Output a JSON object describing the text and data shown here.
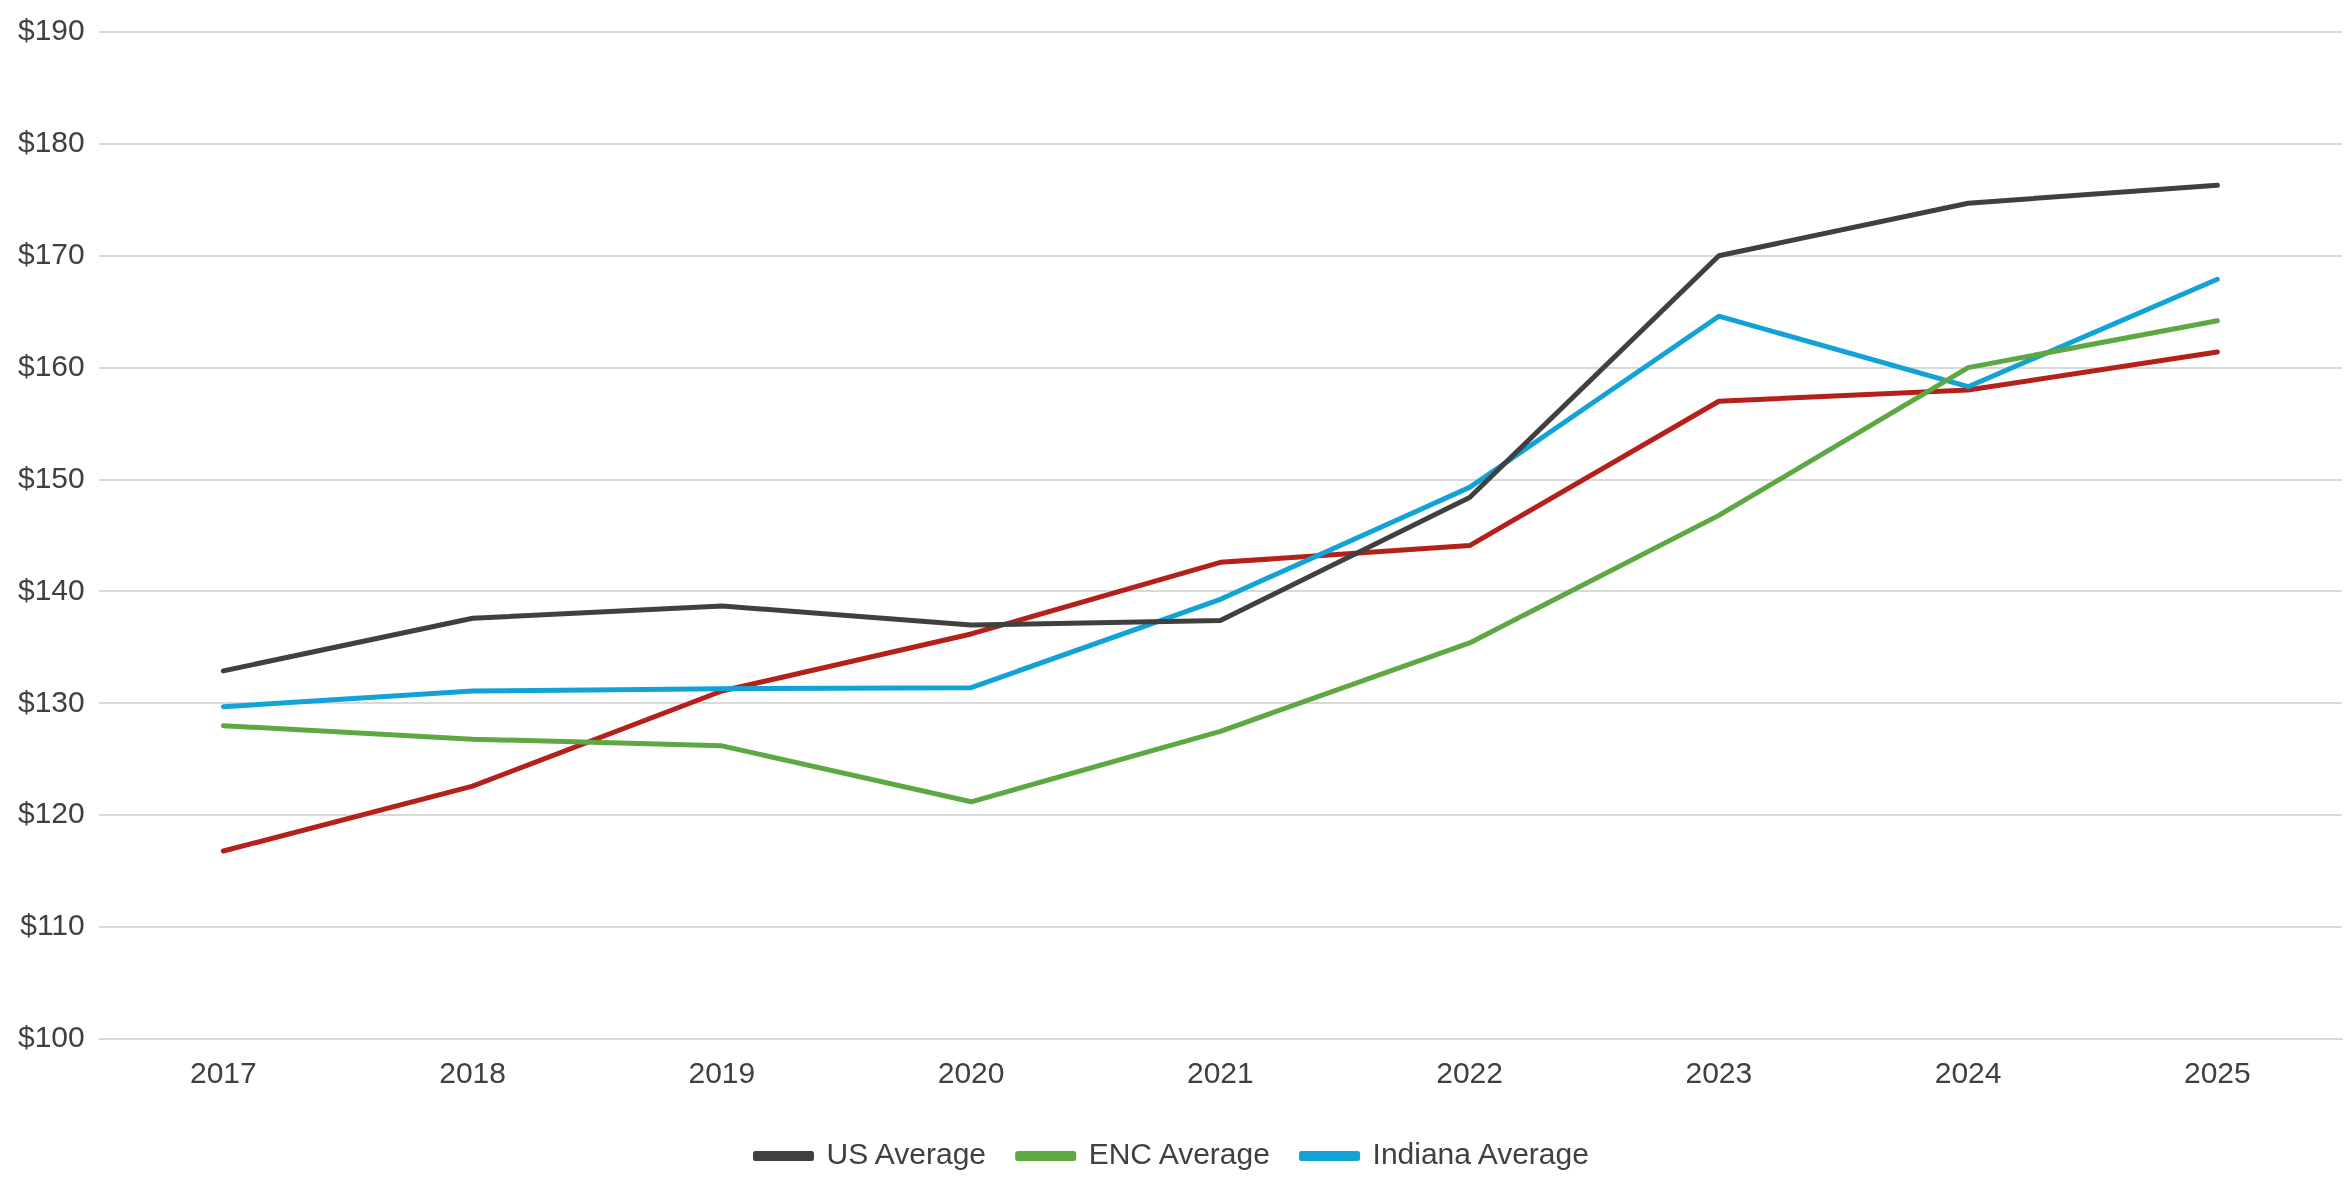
{
  "chart_data": {
    "type": "line",
    "categories": [
      "2017",
      "2018",
      "2019",
      "2020",
      "2021",
      "2022",
      "2023",
      "2024",
      "2025"
    ],
    "series": [
      {
        "name": "US Average",
        "color": "#404040",
        "values": [
          132.9,
          137.6,
          138.7,
          137.0,
          137.4,
          148.4,
          170.0,
          174.7,
          176.3
        ]
      },
      {
        "name": "ENC Average",
        "color": "#5ea843",
        "values": [
          128.0,
          126.8,
          126.2,
          121.2,
          127.5,
          135.4,
          146.8,
          160.0,
          164.2
        ]
      },
      {
        "name": "Indiana Average",
        "color": "#12a3d6",
        "values": [
          129.7,
          131.1,
          131.3,
          131.4,
          139.3,
          149.3,
          164.6,
          158.3,
          167.9
        ]
      },
      {
        "color": "#b5201a",
        "values": [
          116.8,
          122.6,
          131.1,
          136.2,
          142.6,
          144.1,
          157.0,
          158.0,
          161.4
        ]
      }
    ],
    "ylim": [
      100,
      190
    ],
    "yticks": [
      {
        "value": 100,
        "label": "$100"
      },
      {
        "value": 110,
        "label": "$110"
      },
      {
        "value": 120,
        "label": "$120"
      },
      {
        "value": 130,
        "label": "$130"
      },
      {
        "value": 140,
        "label": "$140"
      },
      {
        "value": 150,
        "label": "$150"
      },
      {
        "value": 160,
        "label": "$160"
      },
      {
        "value": 170,
        "label": "$170"
      },
      {
        "value": 180,
        "label": "$180"
      },
      {
        "value": 190,
        "label": "$190"
      }
    ],
    "grid": "y",
    "legend": "bottom",
    "marker": "none",
    "line_style": "solid"
  }
}
